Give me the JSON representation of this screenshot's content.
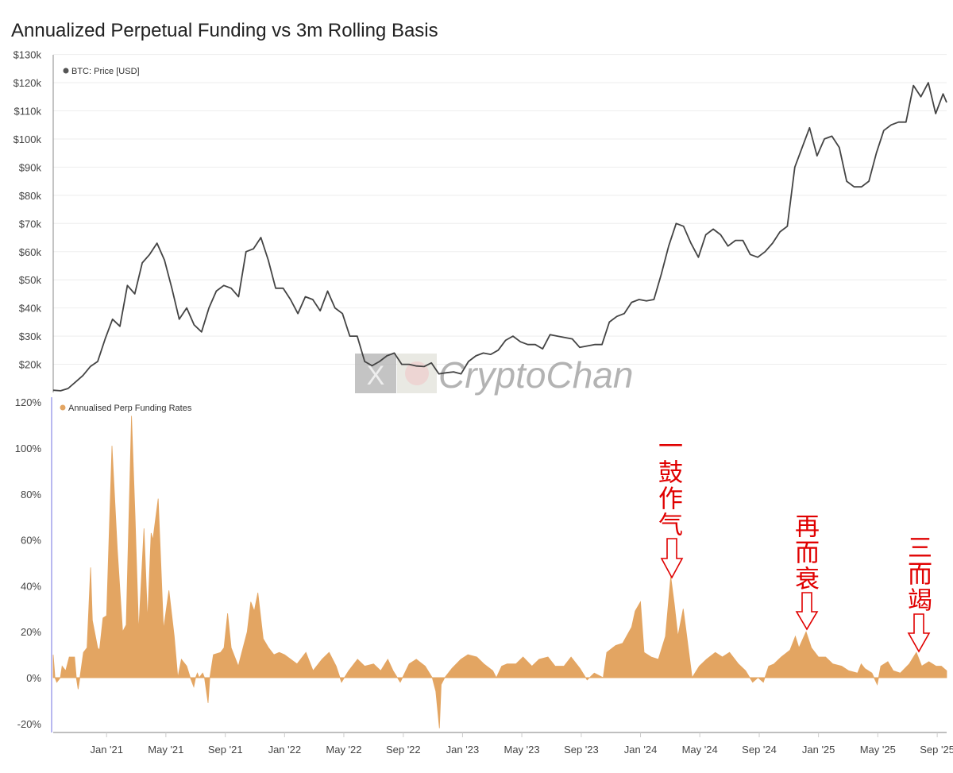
{
  "chart_data": [
    {
      "type": "line",
      "title": "Annualized Perpetual Funding vs 3m Rolling Basis",
      "series_name": "BTC: Price [USD]",
      "color": "#444444",
      "x_unit": "decimal year",
      "x_start": 2020.7,
      "x_step": 0.041667,
      "values": [
        10.8,
        10.6,
        11.4,
        13.7,
        16,
        19.2,
        21,
        29,
        36,
        33.5,
        48,
        45,
        56,
        59,
        63,
        57,
        47,
        36,
        40,
        34,
        31.5,
        40,
        46,
        48,
        47,
        44,
        60,
        61,
        65,
        57,
        47,
        47,
        43,
        38,
        44,
        43,
        39,
        46,
        40,
        38,
        30,
        30,
        21,
        19.5,
        21,
        23,
        24,
        20,
        20,
        19.4,
        19.2,
        20.5,
        16.6,
        17,
        17.3,
        16.6,
        21,
        23,
        24,
        23.5,
        25,
        28.5,
        30,
        28,
        27,
        27,
        25.5,
        30.5,
        30,
        29.5,
        29,
        26,
        26.5,
        27,
        27,
        35,
        37,
        38,
        42,
        43,
        42.5,
        43,
        52,
        62,
        70,
        69,
        63,
        58,
        66,
        68,
        66,
        62,
        64,
        64,
        59,
        58,
        60,
        63,
        67,
        69,
        90,
        97,
        104,
        94,
        100,
        101,
        97,
        85,
        83,
        83,
        85,
        95,
        103,
        105,
        106,
        106,
        119,
        115,
        120,
        109,
        116,
        113
      ],
      "value_unit": "$k",
      "yticks": [
        "$20k",
        "$30k",
        "$40k",
        "$50k",
        "$60k",
        "$70k",
        "$80k",
        "$90k",
        "$100k",
        "$110k",
        "$120k",
        "$130k"
      ],
      "ylim": [
        10,
        130
      ],
      "legend_position": "top-left",
      "grid": true
    },
    {
      "type": "area",
      "series_name": "Annualised Perp Funding Rates",
      "color": "#e3a562",
      "x_unit": "decimal year",
      "points": [
        [
          2020.7,
          10
        ],
        [
          2020.71,
          0
        ],
        [
          2020.72,
          -2
        ],
        [
          2020.74,
          0
        ],
        [
          2020.75,
          5
        ],
        [
          2020.77,
          3
        ],
        [
          2020.79,
          9
        ],
        [
          2020.82,
          9
        ],
        [
          2020.83,
          0
        ],
        [
          2020.84,
          -5
        ],
        [
          2020.85,
          0
        ],
        [
          2020.87,
          11
        ],
        [
          2020.89,
          13
        ],
        [
          2020.91,
          48
        ],
        [
          2020.92,
          25
        ],
        [
          2020.95,
          13
        ],
        [
          2020.96,
          12
        ],
        [
          2020.98,
          26
        ],
        [
          2021.0,
          27
        ],
        [
          2021.03,
          101
        ],
        [
          2021.06,
          56
        ],
        [
          2021.09,
          20
        ],
        [
          2021.11,
          23
        ],
        [
          2021.14,
          114
        ],
        [
          2021.16,
          70
        ],
        [
          2021.18,
          20
        ],
        [
          2021.21,
          65
        ],
        [
          2021.23,
          25
        ],
        [
          2021.25,
          63
        ],
        [
          2021.26,
          60
        ],
        [
          2021.29,
          78
        ],
        [
          2021.32,
          21
        ],
        [
          2021.35,
          38
        ],
        [
          2021.38,
          18
        ],
        [
          2021.4,
          0
        ],
        [
          2021.42,
          8
        ],
        [
          2021.45,
          5
        ],
        [
          2021.47,
          0
        ],
        [
          2021.49,
          -4
        ],
        [
          2021.5,
          0
        ],
        [
          2021.51,
          2
        ],
        [
          2021.52,
          0
        ],
        [
          2021.54,
          2
        ],
        [
          2021.55,
          0
        ],
        [
          2021.57,
          -11
        ],
        [
          2021.58,
          0
        ],
        [
          2021.6,
          10
        ],
        [
          2021.64,
          11
        ],
        [
          2021.66,
          13
        ],
        [
          2021.68,
          28
        ],
        [
          2021.7,
          13
        ],
        [
          2021.74,
          5
        ],
        [
          2021.76,
          11
        ],
        [
          2021.79,
          20
        ],
        [
          2021.81,
          33
        ],
        [
          2021.83,
          29
        ],
        [
          2021.85,
          37
        ],
        [
          2021.88,
          17
        ],
        [
          2021.91,
          13
        ],
        [
          2021.94,
          10
        ],
        [
          2021.97,
          11
        ],
        [
          2022.0,
          10
        ],
        [
          2022.07,
          6
        ],
        [
          2022.12,
          11
        ],
        [
          2022.16,
          3
        ],
        [
          2022.21,
          8
        ],
        [
          2022.25,
          11
        ],
        [
          2022.29,
          5
        ],
        [
          2022.32,
          -2
        ],
        [
          2022.36,
          3
        ],
        [
          2022.41,
          8
        ],
        [
          2022.45,
          5
        ],
        [
          2022.5,
          6
        ],
        [
          2022.54,
          3
        ],
        [
          2022.58,
          8
        ],
        [
          2022.61,
          3
        ],
        [
          2022.65,
          -2
        ],
        [
          2022.7,
          6
        ],
        [
          2022.74,
          8
        ],
        [
          2022.79,
          5
        ],
        [
          2022.83,
          0
        ],
        [
          2022.85,
          -6
        ],
        [
          2022.87,
          -22
        ],
        [
          2022.88,
          -3
        ],
        [
          2022.9,
          0
        ],
        [
          2022.94,
          4
        ],
        [
          2022.99,
          8
        ],
        [
          2023.03,
          10
        ],
        [
          2023.08,
          9
        ],
        [
          2023.12,
          6
        ],
        [
          2023.17,
          3
        ],
        [
          2023.19,
          0
        ],
        [
          2023.22,
          5
        ],
        [
          2023.25,
          6
        ],
        [
          2023.3,
          6
        ],
        [
          2023.34,
          9
        ],
        [
          2023.39,
          5
        ],
        [
          2023.43,
          8
        ],
        [
          2023.48,
          9
        ],
        [
          2023.52,
          5
        ],
        [
          2023.57,
          5
        ],
        [
          2023.61,
          9
        ],
        [
          2023.66,
          4
        ],
        [
          2023.7,
          -1
        ],
        [
          2023.74,
          2
        ],
        [
          2023.79,
          0
        ],
        [
          2023.81,
          11
        ],
        [
          2023.86,
          14
        ],
        [
          2023.9,
          15
        ],
        [
          2023.95,
          22
        ],
        [
          2023.97,
          29
        ],
        [
          2024.0,
          33
        ],
        [
          2024.02,
          11
        ],
        [
          2024.06,
          9
        ],
        [
          2024.1,
          8
        ],
        [
          2024.14,
          18
        ],
        [
          2024.17,
          44
        ],
        [
          2024.19,
          32
        ],
        [
          2024.21,
          18
        ],
        [
          2024.24,
          30
        ],
        [
          2024.26,
          18
        ],
        [
          2024.29,
          0
        ],
        [
          2024.33,
          5
        ],
        [
          2024.37,
          8
        ],
        [
          2024.42,
          11
        ],
        [
          2024.46,
          9
        ],
        [
          2024.5,
          11
        ],
        [
          2024.55,
          6
        ],
        [
          2024.59,
          3
        ],
        [
          2024.63,
          -2
        ],
        [
          2024.66,
          0
        ],
        [
          2024.69,
          -2
        ],
        [
          2024.72,
          5
        ],
        [
          2024.75,
          6
        ],
        [
          2024.79,
          9
        ],
        [
          2024.84,
          12
        ],
        [
          2024.87,
          18
        ],
        [
          2024.89,
          13
        ],
        [
          2024.93,
          20
        ],
        [
          2024.96,
          13
        ],
        [
          2025.0,
          9
        ],
        [
          2025.04,
          9
        ],
        [
          2025.08,
          6
        ],
        [
          2025.13,
          5
        ],
        [
          2025.17,
          3
        ],
        [
          2025.22,
          2
        ],
        [
          2025.24,
          6
        ],
        [
          2025.26,
          4
        ],
        [
          2025.3,
          2
        ],
        [
          2025.33,
          -3
        ],
        [
          2025.35,
          5
        ],
        [
          2025.39,
          7
        ],
        [
          2025.42,
          3
        ],
        [
          2025.46,
          2
        ],
        [
          2025.51,
          6
        ],
        [
          2025.55,
          11
        ],
        [
          2025.58,
          5
        ],
        [
          2025.62,
          7
        ],
        [
          2025.66,
          5
        ],
        [
          2025.69,
          5
        ],
        [
          2025.72,
          3
        ]
      ],
      "value_unit": "%",
      "yticks": [
        "-20%",
        "0%",
        "20%",
        "40%",
        "60%",
        "80%",
        "100%",
        "120%"
      ],
      "ylim": [
        -24,
        120
      ],
      "legend_position": "top-left",
      "grid": false
    }
  ],
  "x_axis": {
    "xlim": [
      2020.7,
      2025.72
    ],
    "ticks": [
      {
        "t": 2021.0,
        "label": "Jan '21"
      },
      {
        "t": 2021.333,
        "label": "May '21"
      },
      {
        "t": 2021.667,
        "label": "Sep '21"
      },
      {
        "t": 2022.0,
        "label": "Jan '22"
      },
      {
        "t": 2022.333,
        "label": "May '22"
      },
      {
        "t": 2022.667,
        "label": "Sep '22"
      },
      {
        "t": 2023.0,
        "label": "Jan '23"
      },
      {
        "t": 2023.333,
        "label": "May '23"
      },
      {
        "t": 2023.667,
        "label": "Sep '23"
      },
      {
        "t": 2024.0,
        "label": "Jan '24"
      },
      {
        "t": 2024.333,
        "label": "May '24"
      },
      {
        "t": 2024.667,
        "label": "Sep '24"
      },
      {
        "t": 2025.0,
        "label": "Jan '25"
      },
      {
        "t": 2025.333,
        "label": "May '25"
      },
      {
        "t": 2025.667,
        "label": "Sep '25"
      }
    ]
  },
  "annotations": [
    {
      "text": "一鼓作气",
      "points_to": 2024.17
    },
    {
      "text": "再而衰",
      "points_to": 2024.93
    },
    {
      "text": "三而竭",
      "points_to": 2025.55
    }
  ],
  "annotation_color": "#e00000",
  "watermark": {
    "text": "CryptoChan",
    "logo": "X"
  }
}
